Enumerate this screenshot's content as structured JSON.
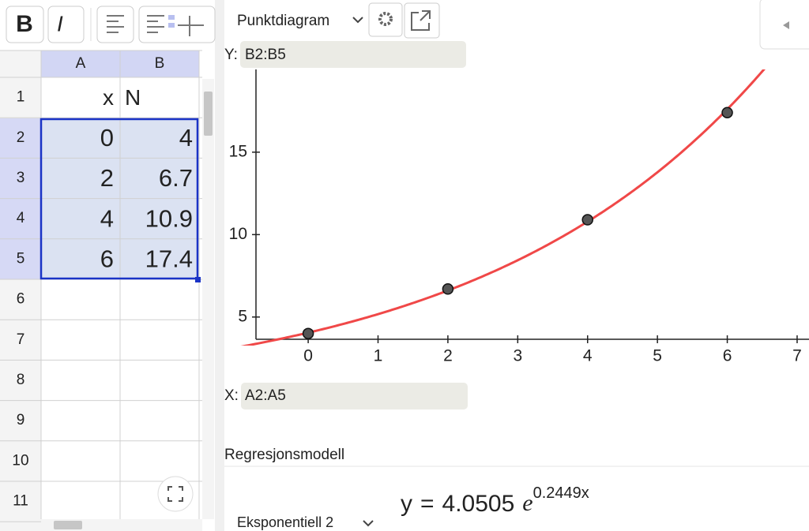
{
  "toolbar": {
    "bold": "B",
    "italic": "I"
  },
  "spreadsheet": {
    "columns": [
      "A",
      "B"
    ],
    "rows": [
      1,
      2,
      3,
      4,
      5,
      6,
      7,
      8,
      9,
      10,
      11
    ],
    "cells": [
      [
        "x",
        "N"
      ],
      [
        0,
        4
      ],
      [
        2,
        6.7
      ],
      [
        4,
        10.9
      ],
      [
        6,
        17.4
      ]
    ]
  },
  "plot_panel": {
    "chart_type_menu": "Punktdiagram",
    "y_label": "Y:",
    "y_range": "B2:B5",
    "x_label": "X:",
    "x_range": "A2:A5",
    "model_heading": "Regresjonsmodell",
    "model_menu": "Eksponentiell 2",
    "equation": {
      "lhs": "y",
      "equals": "=",
      "coefficient": 4.0505,
      "base": "e",
      "rate": 0.2449,
      "variable": "x",
      "color": "#f04848"
    }
  },
  "chart_data": {
    "type": "scatter",
    "x": [
      0,
      2,
      4,
      6
    ],
    "values": [
      4,
      6.7,
      10.9,
      17.4
    ],
    "color": "#555555",
    "xlim": [
      -1.2,
      7.17
    ],
    "ylim": [
      3.65,
      20.02
    ],
    "xticks": [
      0,
      1,
      2,
      3,
      4,
      5,
      6,
      7
    ],
    "yticks": [
      5,
      10,
      15
    ]
  }
}
